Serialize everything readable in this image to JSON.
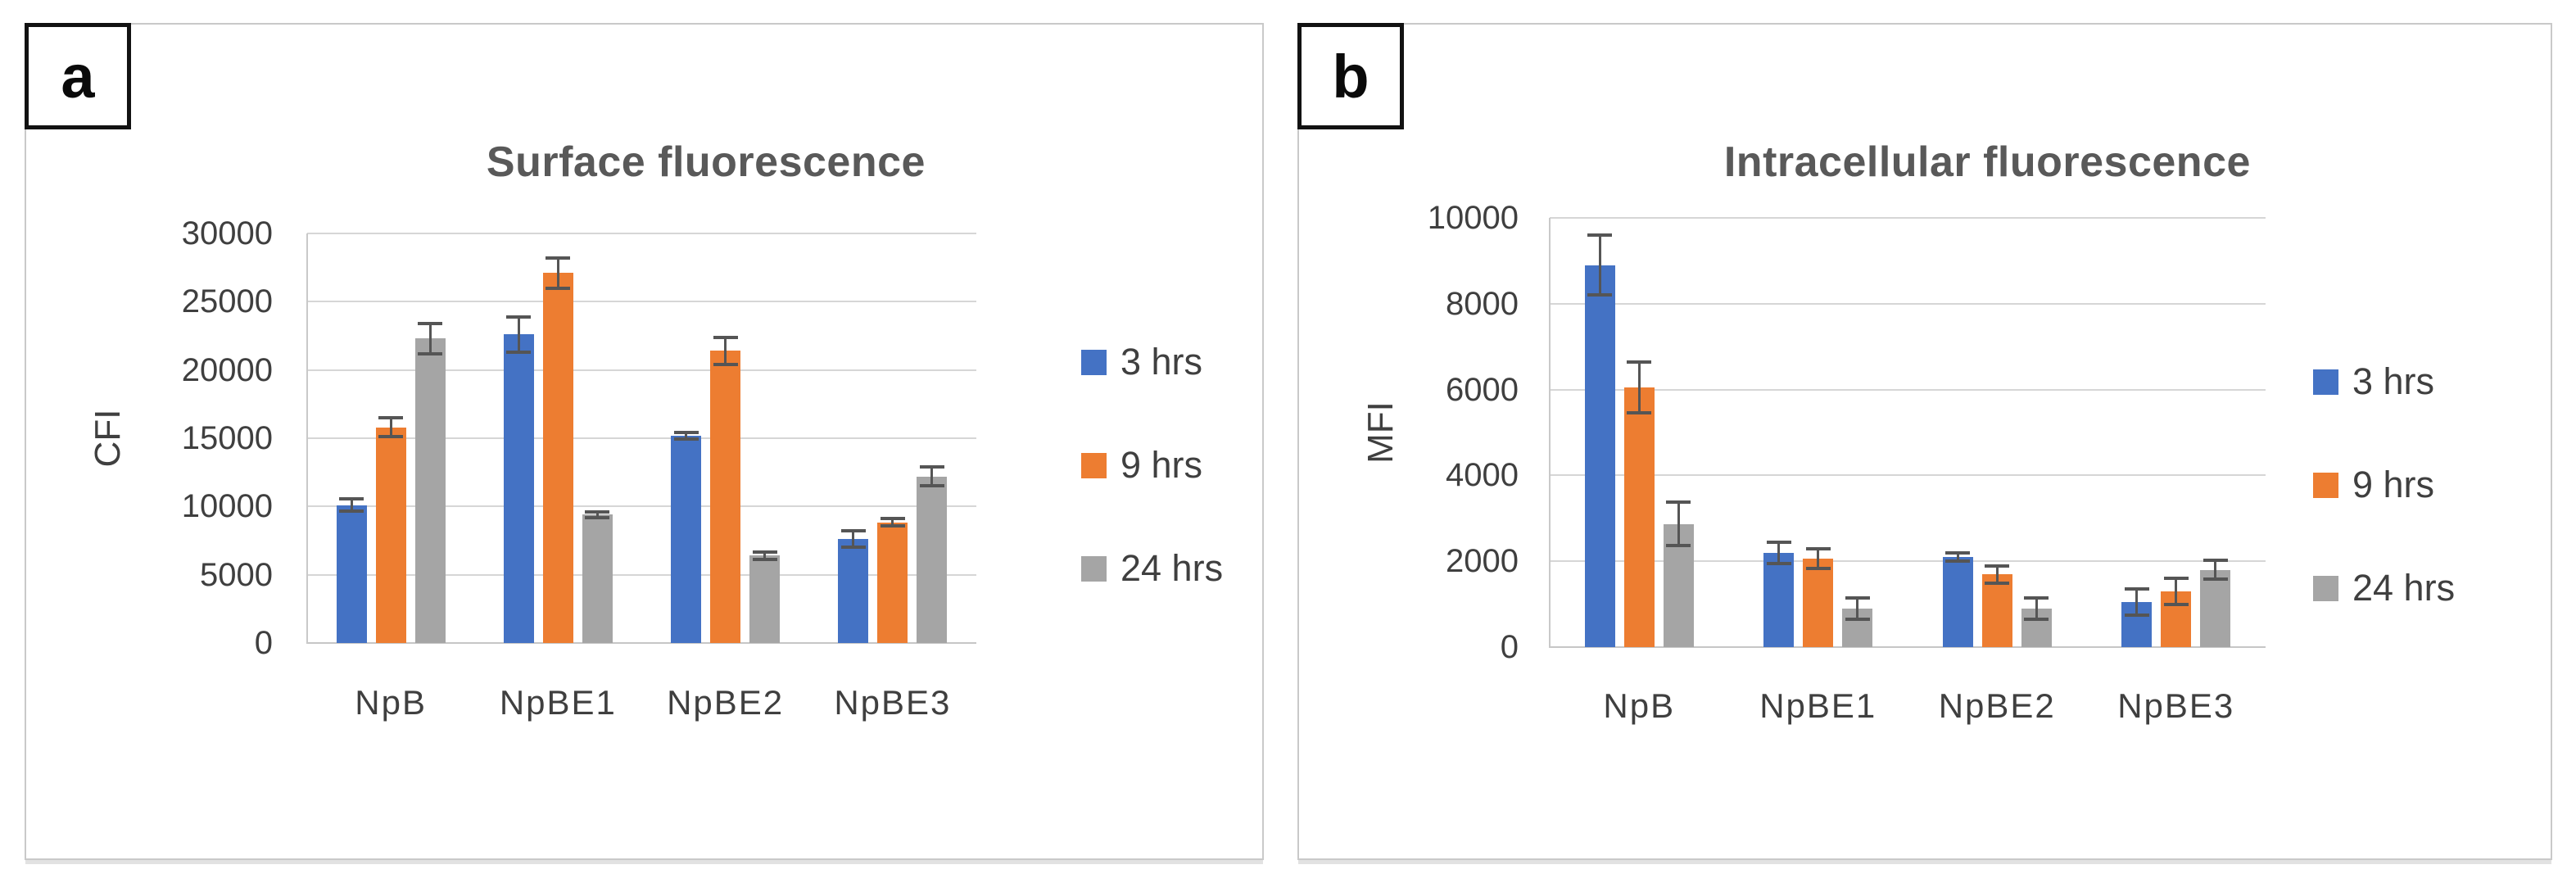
{
  "figure": {
    "background": "#ffffff"
  },
  "colors": {
    "blue": "#4472C4",
    "orange": "#ED7D31",
    "gray": "#A5A5A5",
    "grid": "#D6D6D6",
    "axis": "#C9C9C9",
    "title_text": "#595959",
    "tick_text": "#3F3F3F",
    "error_bar": "#555555",
    "panel_border": "#C9C9C9",
    "label_box_border": "#121212"
  },
  "chart_data": [
    {
      "type": "bar",
      "panel_label": "a",
      "title": "Surface fluorescence",
      "ylabel": "CFI",
      "categories": [
        "NpB",
        "NpBE1",
        "NpBE2",
        "NpBE3"
      ],
      "series": [
        {
          "name": "3 hrs",
          "color": "blue",
          "values": [
            10100,
            22600,
            15200,
            7600
          ],
          "errors": [
            450,
            1300,
            250,
            600
          ]
        },
        {
          "name": "9 hrs",
          "color": "orange",
          "values": [
            15800,
            27100,
            21400,
            8850
          ],
          "errors": [
            700,
            1100,
            1000,
            250
          ]
        },
        {
          "name": "24 hrs",
          "color": "gray",
          "values": [
            22300,
            9400,
            6400,
            12200
          ],
          "errors": [
            1100,
            200,
            250,
            700
          ]
        }
      ],
      "ylim": [
        0,
        30000
      ],
      "yticks": [
        "30000",
        "25000",
        "20000",
        "15000",
        "10000",
        "5000",
        "0"
      ],
      "grid": true,
      "error_bars": true,
      "legend": [
        "3 hrs",
        "9 hrs",
        "24 hrs"
      ],
      "legend_position": "right"
    },
    {
      "type": "bar",
      "panel_label": "b",
      "title": "Intracellular fluorescence",
      "ylabel": "MFI",
      "categories": [
        "NpB",
        "NpBE1",
        "NpBE2",
        "NpBE3"
      ],
      "series": [
        {
          "name": "3 hrs",
          "color": "blue",
          "values": [
            8900,
            2200,
            2100,
            1050
          ],
          "errors": [
            700,
            250,
            100,
            300
          ]
        },
        {
          "name": "9 hrs",
          "color": "orange",
          "values": [
            6050,
            2060,
            1690,
            1300
          ],
          "errors": [
            600,
            230,
            200,
            300
          ]
        },
        {
          "name": "24 hrs",
          "color": "gray",
          "values": [
            2870,
            900,
            900,
            1800
          ],
          "errors": [
            500,
            250,
            250,
            220
          ]
        }
      ],
      "ylim": [
        0,
        10000
      ],
      "yticks": [
        "10000",
        "8000",
        "6000",
        "4000",
        "2000",
        "0"
      ],
      "grid": true,
      "error_bars": true,
      "legend": [
        "3 hrs",
        "9 hrs",
        "24 hrs"
      ],
      "legend_position": "right"
    }
  ]
}
